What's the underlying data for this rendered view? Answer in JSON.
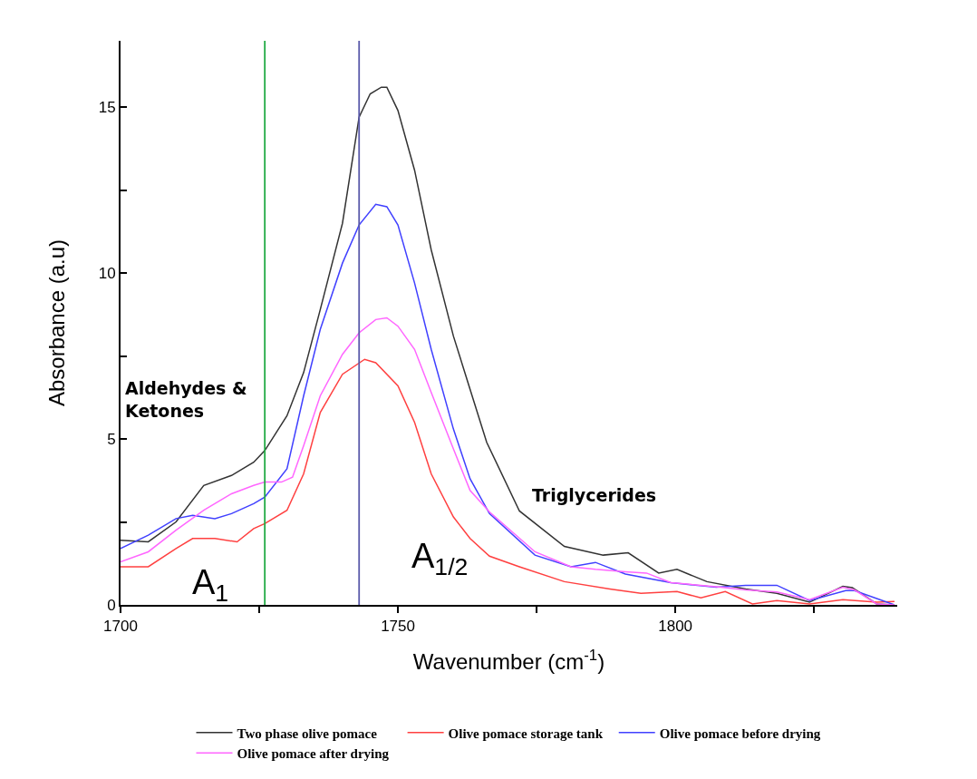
{
  "chart_data": {
    "type": "line",
    "xlabel": "Wavenumber (cm$^{-1}$)",
    "ylabel": "Absorbance (a.u)",
    "xlim": [
      1700,
      1840
    ],
    "xticks": [
      1700,
      {
        "value": 1725,
        "label": null
      },
      1750,
      {
        "value": 1775,
        "label": null
      },
      1800,
      {
        "value": 1825,
        "label": null
      }
    ],
    "ylim": [
      0,
      17
    ],
    "yticks": [
      0,
      {
        "value": 2.5,
        "label": null
      },
      5,
      {
        "value": 7.5,
        "label": null
      },
      10,
      {
        "value": 12.5,
        "label": null
      },
      15
    ],
    "grid": false,
    "legend": "bottom",
    "marker": "none",
    "line_style": "solid",
    "annotations": [
      "Aldehydes & Ketones",
      "A$_{1}$",
      "A$_{1/2}$",
      "Triglycerides"
    ],
    "ref_lines": [
      {
        "axis": "x",
        "value": 1726,
        "color": "#22aa44"
      },
      {
        "axis": "x",
        "value": 1743,
        "color": "#5a5aaa"
      }
    ],
    "series": [
      {
        "name": "Two phase olive pomace",
        "color": "#333333",
        "x": [
          1700,
          1705,
          1710,
          1715,
          1720,
          1724,
          1726,
          1730,
          1733,
          1736,
          1740,
          1743,
          1745,
          1747,
          1748,
          1750,
          1753,
          1756,
          1760,
          1763,
          1766,
          1771.9,
          1780,
          1787,
          1791.5,
          1797,
          1800.3,
          1805.7,
          1812.7,
          1818.3,
          1824.2,
          1830.2,
          1831.9,
          1836.3,
          1839.5
        ],
        "values": [
          1.95,
          1.9,
          2.5,
          3.6,
          3.9,
          4.3,
          4.65,
          5.7,
          7.0,
          8.9,
          11.5,
          14.7,
          15.4,
          15.6,
          15.6,
          14.9,
          13.1,
          10.7,
          8.1,
          6.5,
          4.9,
          2.83,
          1.76,
          1.5,
          1.57,
          0.96,
          1.07,
          0.7,
          0.48,
          0.35,
          0.08,
          0.56,
          0.52,
          0.03,
          0
        ]
      },
      {
        "name": "Olive pomace storage tank",
        "color": "#ff4040",
        "x": [
          1700,
          1705,
          1710,
          1713,
          1717,
          1721,
          1724,
          1726,
          1730,
          1733,
          1736,
          1740,
          1744,
          1746,
          1750,
          1753,
          1756,
          1760,
          1763,
          1766.5,
          1771.9,
          1780,
          1788.2,
          1793.8,
          1800.3,
          1804.6,
          1809,
          1813.9,
          1818.3,
          1824.2,
          1830.2,
          1836.3,
          1839.5
        ],
        "values": [
          1.15,
          1.15,
          1.7,
          2.0,
          2.0,
          1.9,
          2.3,
          2.45,
          2.85,
          3.95,
          5.8,
          6.95,
          7.4,
          7.3,
          6.6,
          5.5,
          3.95,
          2.65,
          2.0,
          1.47,
          1.15,
          0.7,
          0.48,
          0.35,
          0.4,
          0.21,
          0.4,
          0.03,
          0.13,
          0.03,
          0.16,
          0.08,
          0.1
        ]
      },
      {
        "name": "Olive pomace before drying",
        "color": "#4040ff",
        "x": [
          1700,
          1705,
          1710,
          1713,
          1717,
          1720,
          1724,
          1726,
          1730,
          1733,
          1736,
          1740,
          1743,
          1746,
          1748,
          1750,
          1753,
          1756,
          1760,
          1763,
          1766.5,
          1774.7,
          1781.2,
          1785.6,
          1791,
          1799.2,
          1807.4,
          1812.7,
          1818.3,
          1824.2,
          1830.7,
          1832.3,
          1839.5
        ],
        "values": [
          1.7,
          2.1,
          2.6,
          2.7,
          2.6,
          2.75,
          3.05,
          3.25,
          4.1,
          6.3,
          8.3,
          10.3,
          11.45,
          12.07,
          12.0,
          11.45,
          9.7,
          7.7,
          5.3,
          3.8,
          2.75,
          1.5,
          1.15,
          1.28,
          0.93,
          0.67,
          0.53,
          0.59,
          0.59,
          0.13,
          0.43,
          0.43,
          0
        ]
      },
      {
        "name": "Olive pomace after drying",
        "color": "#ff66ff",
        "x": [
          1700,
          1705,
          1710,
          1715,
          1720,
          1724,
          1726,
          1729,
          1731,
          1733,
          1736,
          1740,
          1743,
          1746,
          1748,
          1750,
          1753,
          1756,
          1760,
          1763,
          1766.5,
          1774.7,
          1781.2,
          1785.6,
          1791,
          1794.8,
          1799.2,
          1807.4,
          1812.7,
          1818.3,
          1824.2,
          1830.2,
          1832.3,
          1836.3,
          1839.5
        ],
        "values": [
          1.3,
          1.6,
          2.25,
          2.85,
          3.35,
          3.6,
          3.7,
          3.7,
          3.85,
          4.8,
          6.3,
          7.55,
          8.2,
          8.6,
          8.65,
          8.4,
          7.7,
          6.4,
          4.7,
          3.45,
          2.8,
          1.6,
          1.15,
          1.07,
          1.0,
          0.96,
          0.67,
          0.55,
          0.45,
          0.39,
          0.16,
          0.53,
          0.45,
          0.03,
          0
        ]
      }
    ]
  }
}
